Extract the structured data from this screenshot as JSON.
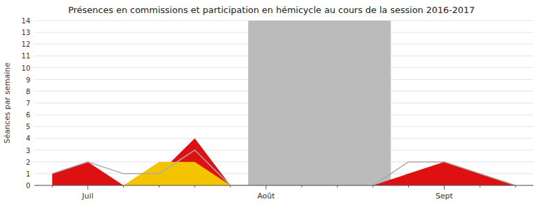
{
  "chart_data": {
    "type": "area",
    "title": "Présences en commissions et participation en hémicycle au cours de la session 2016-2017",
    "y_label": "Séances par semaine",
    "categories": [
      null,
      "Juil",
      null,
      null,
      null,
      null,
      "Août",
      null,
      null,
      null,
      null,
      "Sept",
      null,
      null
    ],
    "series": [
      {
        "type": "area",
        "color": "#dd1111",
        "values": [
          1,
          2,
          0,
          1,
          4,
          0,
          0,
          0,
          0,
          0,
          1,
          2,
          1,
          0
        ]
      },
      {
        "type": "area",
        "color": "#f5c400",
        "values": [
          0,
          0,
          0,
          2,
          2,
          0,
          0,
          0,
          0,
          0,
          0,
          0,
          0,
          0
        ]
      },
      {
        "type": "line",
        "color": "#aaaaaa",
        "values": [
          1,
          2,
          1,
          1,
          3,
          0,
          0,
          0,
          0,
          0,
          2,
          2,
          1,
          0
        ]
      }
    ],
    "bands": [
      {
        "from": 5.5,
        "to": 9.5,
        "color": "#bbbbbb"
      }
    ],
    "ylim": [
      0,
      14
    ],
    "yticks": [
      0,
      1,
      2,
      3,
      4,
      5,
      6,
      7,
      8,
      9,
      10,
      11,
      12,
      13,
      14
    ],
    "grid": true,
    "stacked": false
  }
}
